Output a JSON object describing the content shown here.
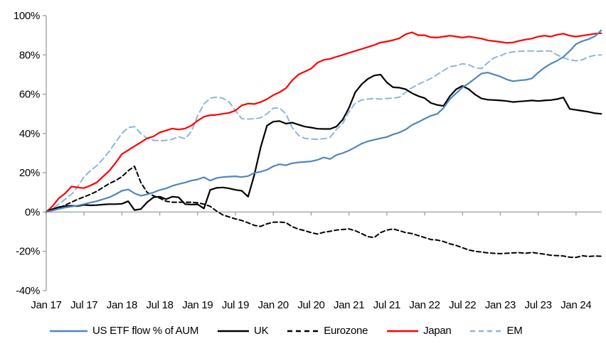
{
  "chart_data": {
    "type": "line",
    "title": "",
    "x_unit": "months since Jan 2017, monthly samples",
    "x_tick_labels": [
      "Jan 17",
      "Jul 17",
      "Jan 18",
      "Jul 18",
      "Jan 19",
      "Jul 19",
      "Jan 20",
      "Jul 20",
      "Jan 21",
      "Jul 21",
      "Jan 22",
      "Jul 22",
      "Jan 23",
      "Jul 23",
      "Jan 24"
    ],
    "x_tick_month_indices": [
      0,
      6,
      12,
      18,
      24,
      30,
      36,
      42,
      48,
      54,
      60,
      66,
      72,
      78,
      84
    ],
    "y_ticks": [
      100,
      80,
      60,
      40,
      20,
      0,
      -20,
      -40
    ],
    "y_suffix": "%",
    "ylim": [
      -40,
      100
    ],
    "grid": "zero-line-only",
    "axis_color": "#9d9d9d",
    "text_color": "#000000",
    "legend_position": "bottom",
    "draw_order": [
      2,
      4,
      3,
      1,
      0
    ],
    "series": [
      {
        "name": "US ETF flow % of AUM",
        "color": "#4f86be",
        "style": "solid",
        "values": [
          0,
          0.8,
          1.6,
          2.3,
          2.8,
          3.3,
          4,
          4.8,
          5.5,
          6.5,
          7.5,
          9,
          10.8,
          11.5,
          9.5,
          8.3,
          9,
          10,
          11.2,
          12,
          13.3,
          14.2,
          15,
          16,
          16.6,
          17.7,
          16,
          17.3,
          17.8,
          18,
          18.2,
          17.8,
          18.3,
          19.9,
          20.5,
          21.5,
          23.3,
          24.3,
          23.8,
          24.8,
          25.3,
          25.5,
          25.8,
          26.5,
          27.8,
          27,
          29,
          30,
          31.3,
          33,
          34.8,
          36,
          36.8,
          37.5,
          38.2,
          39.5,
          40.5,
          42,
          44.3,
          45.8,
          47.5,
          49,
          50,
          53,
          57.5,
          60.5,
          63.5,
          65.6,
          68,
          70.5,
          71,
          70,
          69,
          67.5,
          66.6,
          67,
          67.3,
          68,
          71,
          73.5,
          75.5,
          77,
          79,
          82,
          85.5,
          87,
          88,
          89.5,
          92.5
        ]
      },
      {
        "name": "UK",
        "color": "#000000",
        "style": "solid",
        "values": [
          0,
          1.5,
          2.5,
          3,
          3.2,
          3,
          3.6,
          3.4,
          3.5,
          3.8,
          4,
          4,
          4.2,
          5.5,
          1,
          1.5,
          5,
          7.5,
          7.8,
          6.5,
          7.8,
          7.5,
          4,
          3.8,
          3.9,
          1.8,
          11.3,
          12.3,
          12.5,
          12,
          11.3,
          10.8,
          7.8,
          19,
          33,
          44,
          46,
          46.3,
          45,
          45.5,
          44.5,
          43.5,
          43,
          42.4,
          42.3,
          42.3,
          43.5,
          47,
          53,
          61,
          65,
          67.8,
          69.5,
          70,
          66,
          63.5,
          63.3,
          62.5,
          60.5,
          59,
          58,
          55.5,
          54.5,
          54,
          59,
          62.5,
          64.2,
          62.5,
          59.8,
          57.8,
          57.2,
          57,
          56.8,
          56.5,
          56,
          56.3,
          56.5,
          56.8,
          56.5,
          56.8,
          57,
          57.5,
          58.3,
          52.5,
          52,
          51.5,
          51,
          50.3,
          50
        ]
      },
      {
        "name": "Eurozone",
        "color": "#000000",
        "style": "dashed",
        "values": [
          0,
          1,
          2,
          3.5,
          5,
          6.5,
          7.7,
          9,
          10.5,
          12.5,
          14.5,
          16,
          18,
          21,
          23.3,
          15,
          10,
          8.3,
          7,
          5.5,
          5,
          5,
          5,
          5,
          4.7,
          4,
          2.9,
          0.5,
          -1.5,
          -2.5,
          -3.5,
          -4.3,
          -5.5,
          -6.8,
          -7.3,
          -6,
          -5.2,
          -5.1,
          -5.4,
          -7.5,
          -8.7,
          -9.5,
          -10.5,
          -11.2,
          -10.3,
          -9.8,
          -9.2,
          -8.9,
          -8.6,
          -9.5,
          -11,
          -12.5,
          -13,
          -10.5,
          -9.2,
          -8.6,
          -9.5,
          -10.5,
          -11,
          -12,
          -13,
          -14,
          -14.3,
          -15,
          -16.2,
          -17,
          -18.2,
          -19.3,
          -20,
          -20.4,
          -20.8,
          -21,
          -21.2,
          -21,
          -20.8,
          -20.7,
          -21,
          -20.6,
          -21,
          -21.5,
          -22,
          -22.2,
          -22.4,
          -23,
          -23.1,
          -22.3,
          -22.6,
          -22.4,
          -22.5
        ]
      },
      {
        "name": "Japan",
        "color": "#fe0000",
        "style": "solid",
        "values": [
          0,
          3,
          7,
          9.5,
          13,
          12.5,
          12.2,
          13.5,
          15,
          18,
          21,
          25,
          29.5,
          31.5,
          33.5,
          35.5,
          37.5,
          38.5,
          40.5,
          41.5,
          42.5,
          42,
          42.5,
          44,
          46.5,
          48.5,
          49.3,
          49.5,
          50,
          50.5,
          51.7,
          54.3,
          55.2,
          55,
          56,
          57.5,
          59.5,
          61,
          63,
          67,
          70,
          71.5,
          73,
          76,
          77.5,
          78,
          79,
          80,
          81,
          82,
          83,
          84,
          85,
          86.3,
          86.8,
          87.5,
          88.5,
          90.5,
          91.5,
          90,
          90,
          89,
          88.8,
          89.3,
          89.8,
          89.3,
          88.8,
          89.3,
          88.8,
          88.3,
          87.4,
          87,
          86.6,
          86.1,
          86.3,
          87.2,
          87.8,
          88.3,
          89.3,
          89.8,
          89.3,
          90.3,
          90.8,
          89.8,
          89.3,
          89.8,
          90.3,
          90.8,
          91
        ]
      },
      {
        "name": "EM",
        "color": "#8fb5dd",
        "style": "dashed",
        "values": [
          0,
          2,
          4,
          6.5,
          9,
          13,
          18,
          21,
          23.5,
          27,
          31,
          35.5,
          40,
          43,
          43.5,
          40,
          37.5,
          36.5,
          36.3,
          36.5,
          37,
          38.4,
          37.3,
          41,
          49,
          55,
          58,
          58.5,
          58,
          56,
          51.7,
          47.5,
          47.3,
          47.5,
          48,
          50,
          52.9,
          53,
          50,
          43,
          39,
          37.5,
          37.2,
          37,
          37.3,
          38,
          42,
          45,
          51,
          55.4,
          57,
          57.5,
          57.8,
          57.5,
          57.8,
          58,
          58.5,
          61,
          63.3,
          65,
          66.5,
          68,
          70,
          72,
          74,
          74.5,
          75.5,
          75,
          73.5,
          73,
          76,
          78.5,
          79.5,
          81,
          81.5,
          81.8,
          82,
          82,
          81.8,
          82,
          82,
          80,
          78.5,
          77.5,
          77,
          77.5,
          79,
          79.8,
          80
        ]
      }
    ]
  }
}
